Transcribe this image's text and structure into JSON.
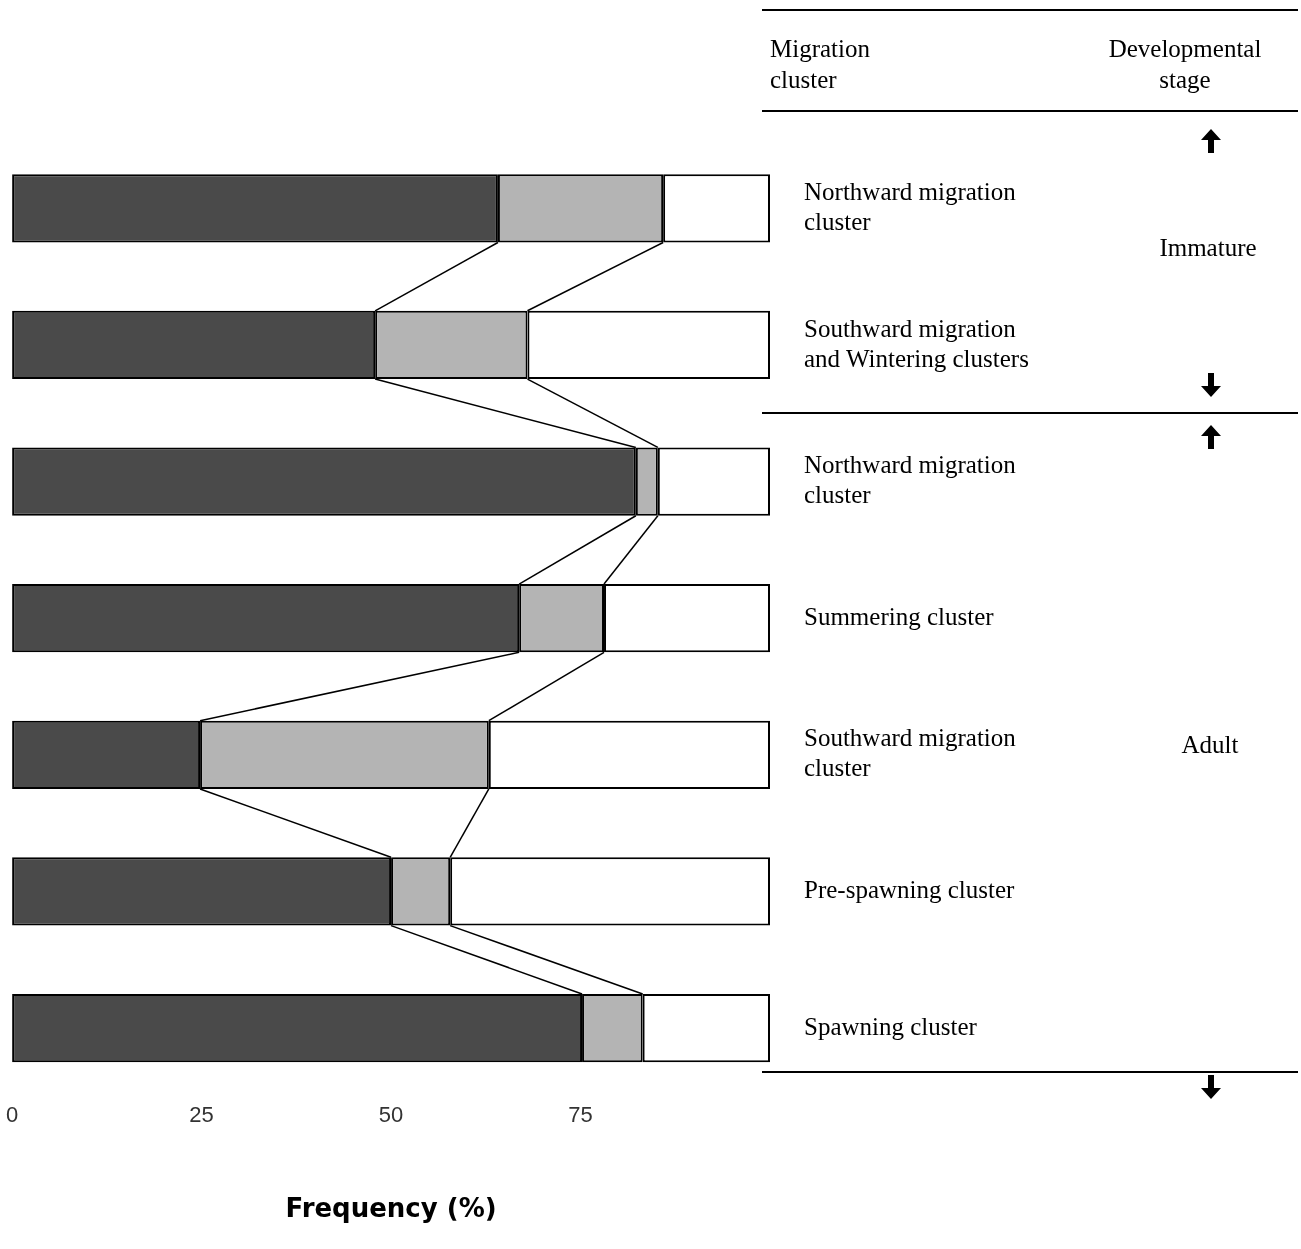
{
  "chart_data": {
    "type": "bar",
    "orientation": "horizontal",
    "stacked": true,
    "categories": [
      "Northward migration cluster",
      "Southward migration and Wintering clusters",
      "Northward migration cluster",
      "Summering cluster",
      "Southward migration cluster",
      "Pre-spawning cluster",
      "Spawning cluster"
    ],
    "series": [
      {
        "color": "#4a4a4a",
        "values": [
          64.1,
          47.9,
          82.3,
          66.9,
          24.8,
          50.0,
          75.2
        ]
      },
      {
        "color": "#b4b4b4",
        "values": [
          21.8,
          20.1,
          2.9,
          11.2,
          38.1,
          7.8,
          8.0
        ]
      },
      {
        "color": "#ffffff",
        "values": [
          14.1,
          32.0,
          14.8,
          21.9,
          37.1,
          42.2,
          16.8
        ]
      }
    ],
    "xlim": [
      0,
      100
    ],
    "xticks": [
      0,
      25,
      50,
      75
    ],
    "xlabel": "Frequency (%)",
    "ylabel": "Migration cluster",
    "annotations": [
      "Developmental stage",
      "Immature",
      "Adult"
    ],
    "grid": false,
    "legend": false
  }
}
